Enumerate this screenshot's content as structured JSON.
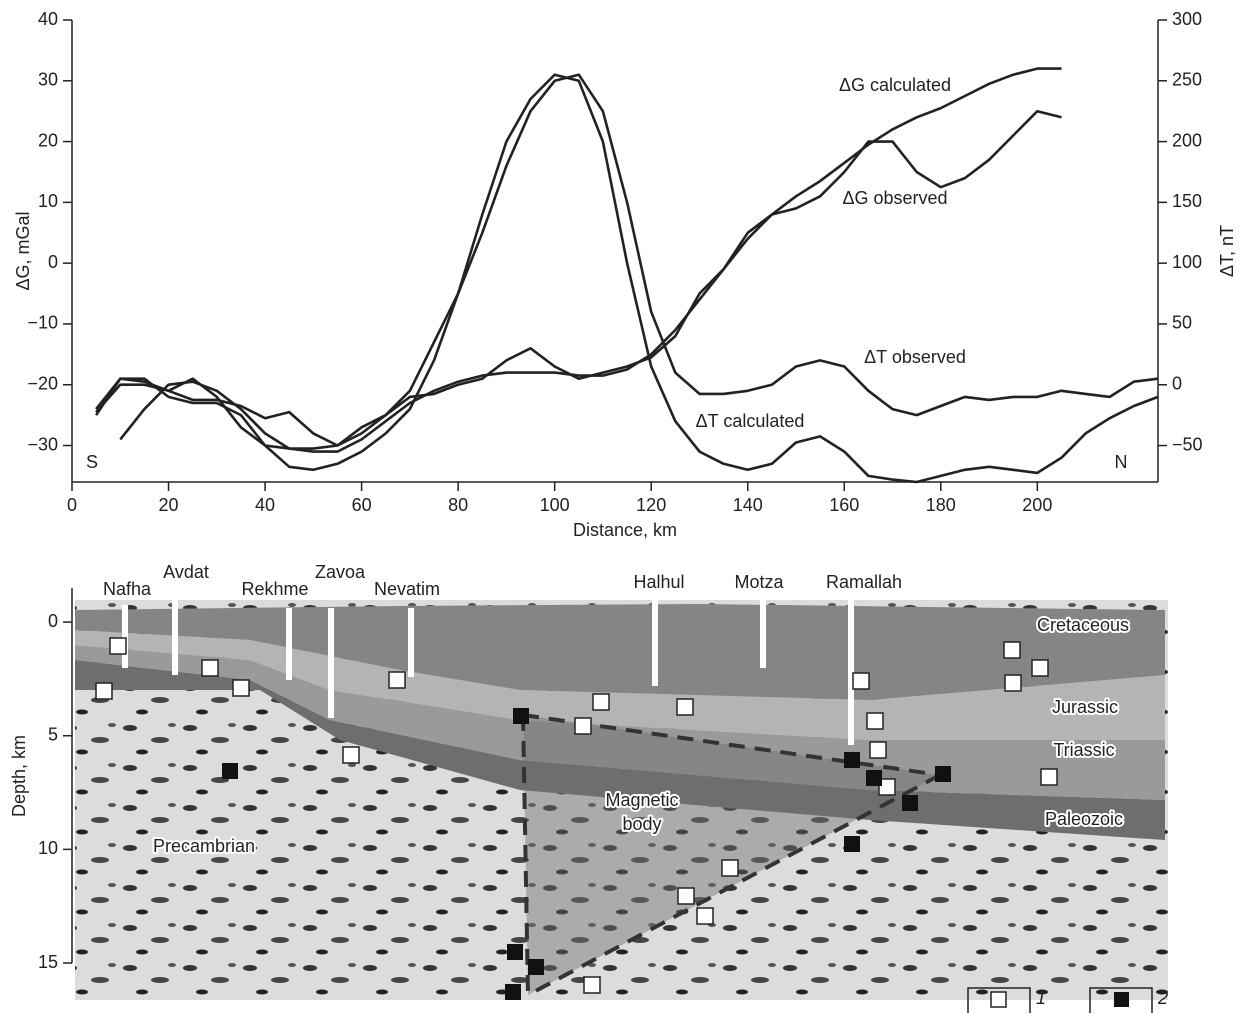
{
  "chart_data": [
    {
      "type": "line",
      "xlabel": "Distance, km",
      "ylabel": "ΔG, mGal",
      "y2label": "ΔT, nT",
      "annotations": [
        "S",
        "N"
      ],
      "xlim": [
        0,
        225
      ],
      "xticks": [
        0,
        20,
        40,
        60,
        80,
        100,
        120,
        140,
        160,
        180,
        200
      ],
      "ylim": [
        -36,
        40
      ],
      "yticks": [
        40,
        30,
        20,
        10,
        0,
        {
          "value": -10,
          "label": "−10"
        },
        {
          "value": -20,
          "label": "−20"
        },
        {
          "value": -30,
          "label": "−30"
        }
      ],
      "y2lim": [
        -80,
        300
      ],
      "y2ticks": [
        300,
        250,
        200,
        150,
        100,
        50,
        0,
        {
          "value": -50,
          "label": "−50"
        }
      ],
      "x": [
        5,
        10,
        15,
        20,
        25,
        30,
        35,
        40,
        45,
        50,
        55,
        60,
        65,
        70,
        75,
        80,
        85,
        90,
        95,
        100,
        105,
        110,
        115,
        120,
        125,
        130,
        135,
        140,
        145,
        150,
        155,
        160,
        165,
        170,
        175,
        180,
        185,
        190,
        195,
        200,
        205,
        210,
        215,
        220,
        225
      ],
      "series": [
        {
          "name": "ΔG calculated",
          "color": "#222222",
          "values": [
            null,
            -29,
            -24,
            -20,
            -19.5,
            -21,
            -24,
            -28,
            -30.5,
            -31,
            -31,
            -29,
            -26,
            -23,
            -21,
            -19.5,
            -18.5,
            -18,
            -18,
            -18,
            -18.5,
            -18.5,
            -17.5,
            -15,
            -11,
            -6,
            -1,
            4,
            8,
            11,
            13.5,
            16.5,
            19.5,
            22,
            24,
            25.5,
            27.5,
            29.5,
            31,
            32,
            32,
            null,
            null,
            null,
            null
          ]
        },
        {
          "name": "ΔG observed",
          "color": "#222222",
          "values": [
            -25,
            -19,
            -19.5,
            -21,
            -22.5,
            -22.5,
            -23.5,
            -25.5,
            -24.5,
            -28,
            -30,
            -27,
            -25,
            -22,
            -21.5,
            -20,
            -19,
            -16,
            -14,
            -17,
            -19,
            -18,
            -17,
            -15.5,
            -12,
            -5,
            -1,
            5,
            8,
            9,
            11,
            15,
            20,
            20,
            15,
            12.5,
            14,
            17,
            21,
            25,
            24,
            null,
            null,
            null,
            null
          ]
        },
        {
          "name": "ΔT observed",
          "color": "#222222",
          "axis": "y2",
          "values": [
            -22.5,
            0,
            0,
            -5,
            5,
            -10,
            -35,
            -50,
            -52.5,
            -52.5,
            -50,
            -40,
            -25,
            -5,
            35,
            75,
            125,
            180,
            225,
            250,
            255,
            225,
            150,
            60,
            10,
            -7.5,
            -7.5,
            -5,
            0,
            15,
            20,
            15,
            -5,
            -20,
            -25,
            -17.5,
            -10,
            -12.5,
            -10,
            -10,
            -5,
            -7.5,
            -10,
            2.5,
            5
          ]
        },
        {
          "name": "ΔT calculated",
          "color": "#222222",
          "axis": "y2",
          "values": [
            -20,
            5,
            5,
            -10,
            -15,
            -15,
            -25,
            -50,
            -67.5,
            -70,
            -65,
            -55,
            -40,
            -20,
            20,
            75,
            140,
            200,
            235,
            255,
            250,
            200,
            100,
            15,
            -30,
            -55,
            -65,
            -70,
            -65,
            -47.5,
            -42.5,
            -55,
            -75,
            -78,
            -80,
            -75,
            -70,
            -67.5,
            -70,
            -72.5,
            -60,
            -40,
            -27.5,
            -17.5,
            -10
          ]
        }
      ]
    },
    {
      "type": "section",
      "ylabel": "Depth, km",
      "ylim": [
        -1.5,
        15
      ],
      "yticks": [
        0,
        5,
        10,
        15
      ],
      "wells": [
        "Nafha",
        "Avdat",
        "Rekhme",
        "Zavoa",
        "Nevatim",
        "Halhul",
        "Motza",
        "Ramallah"
      ],
      "units": [
        "Cretaceous",
        "Jurassic",
        "Triassic",
        "Paleozoic",
        "Precambrian"
      ],
      "body": [
        "Magnetic",
        "body"
      ],
      "legend": [
        "1",
        "2"
      ]
    }
  ]
}
